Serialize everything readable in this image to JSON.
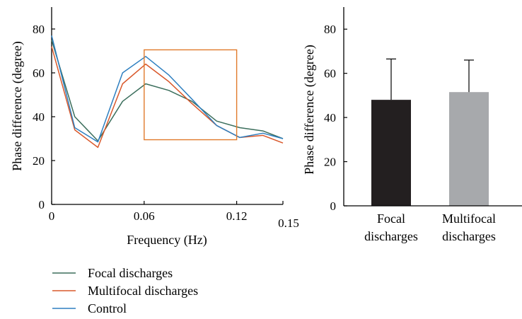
{
  "chart_data": [
    {
      "type": "line",
      "title": "",
      "xlabel": "Frequency (Hz)",
      "ylabel": "Phase difference (degree)",
      "xlim": [
        0,
        0.15
      ],
      "ylim": [
        0,
        90
      ],
      "x_ticks": [
        0,
        0.06,
        0.12,
        0.15
      ],
      "x_tick_labels": [
        "0",
        "0.06",
        "0.12",
        "0.15"
      ],
      "y_ticks": [
        0,
        20,
        40,
        60,
        80
      ],
      "y_tick_labels": [
        "0",
        "20",
        "40",
        "60",
        "80"
      ],
      "grid": false,
      "legend": "below",
      "x": [
        0,
        0.015,
        0.03,
        0.046,
        0.061,
        0.076,
        0.091,
        0.107,
        0.122,
        0.137,
        0.15
      ],
      "series": [
        {
          "name": "Focal discharges",
          "color": "#3b6e5c",
          "values": [
            75,
            40,
            29,
            47,
            55,
            52,
            47,
            38,
            35,
            33.5,
            30
          ]
        },
        {
          "name": "Multifocal discharges",
          "color": "#d9582b",
          "values": [
            72,
            34,
            26,
            55,
            64,
            56,
            46,
            36,
            30.5,
            31.5,
            28
          ]
        },
        {
          "name": "Control",
          "color": "#2e7fc0",
          "values": [
            77,
            35,
            28.5,
            60,
            67.5,
            59,
            48,
            36,
            30.5,
            32.5,
            30
          ]
        }
      ],
      "annotations": [
        {
          "type": "rectangle",
          "color": "#e07a2b",
          "x_range": [
            0.06,
            0.12
          ],
          "y_range": [
            29.5,
            70.5
          ]
        }
      ]
    },
    {
      "type": "bar",
      "title": "",
      "xlabel": "",
      "ylabel": "Phase difference (degree)",
      "ylim": [
        0,
        90
      ],
      "y_ticks": [
        0,
        20,
        40,
        60,
        80
      ],
      "y_tick_labels": [
        "0",
        "20",
        "40",
        "60",
        "80"
      ],
      "categories": [
        {
          "line1": "Focal",
          "line2": "discharges"
        },
        {
          "line1": "Multifocal",
          "line2": "discharges"
        }
      ],
      "values": [
        48,
        51.5
      ],
      "error_upper": [
        66.5,
        66
      ],
      "colors": [
        "#231f20",
        "#a7a9ac"
      ],
      "grid": false
    }
  ]
}
